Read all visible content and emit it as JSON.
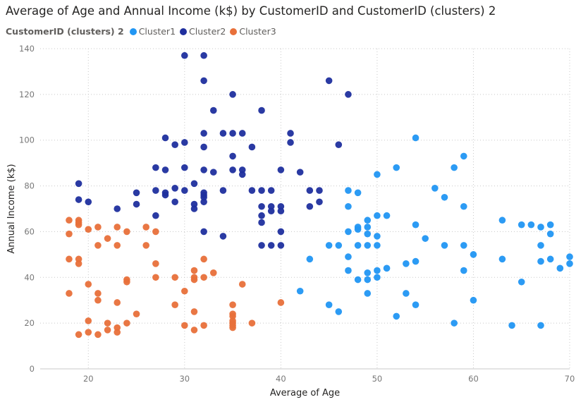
{
  "chart_data": {
    "type": "scatter",
    "title": "Average of Age and Annual Income (k$) by CustomerID and CustomerID (clusters) 2",
    "legend_title": "CustomerID (clusters) 2",
    "legend_position": "top-left",
    "xlabel": "Average of Age",
    "ylabel": "Annual Income (k$)",
    "xlim": [
      15,
      70
    ],
    "ylim": [
      0,
      140
    ],
    "xticks": [
      20,
      30,
      40,
      50,
      60,
      70
    ],
    "yticks": [
      0,
      20,
      40,
      60,
      80,
      100,
      120,
      140
    ],
    "grid": true,
    "series": [
      {
        "name": "Cluster1",
        "color": "#2196F3",
        "points": [
          [
            42,
            34
          ],
          [
            43,
            48
          ],
          [
            45,
            28
          ],
          [
            45,
            54
          ],
          [
            46,
            25
          ],
          [
            46,
            54
          ],
          [
            47,
            78
          ],
          [
            47,
            71
          ],
          [
            47,
            60
          ],
          [
            47,
            49
          ],
          [
            47,
            43
          ],
          [
            48,
            77
          ],
          [
            48,
            62
          ],
          [
            48,
            61
          ],
          [
            48,
            54
          ],
          [
            48,
            39
          ],
          [
            49,
            65
          ],
          [
            49,
            62
          ],
          [
            49,
            59
          ],
          [
            49,
            54
          ],
          [
            49,
            42
          ],
          [
            49,
            39
          ],
          [
            49,
            33
          ],
          [
            50,
            85
          ],
          [
            50,
            67
          ],
          [
            50,
            58
          ],
          [
            50,
            54
          ],
          [
            50,
            43
          ],
          [
            50,
            40
          ],
          [
            51,
            67
          ],
          [
            51,
            44
          ],
          [
            52,
            88
          ],
          [
            52,
            23
          ],
          [
            53,
            46
          ],
          [
            53,
            33
          ],
          [
            54,
            101
          ],
          [
            54,
            63
          ],
          [
            54,
            47
          ],
          [
            54,
            28
          ],
          [
            55,
            57
          ],
          [
            56,
            79
          ],
          [
            57,
            75
          ],
          [
            57,
            54
          ],
          [
            58,
            88
          ],
          [
            58,
            20
          ],
          [
            59,
            93
          ],
          [
            59,
            71
          ],
          [
            59,
            54
          ],
          [
            59,
            43
          ],
          [
            60,
            50
          ],
          [
            60,
            30
          ],
          [
            63,
            65
          ],
          [
            63,
            48
          ],
          [
            64,
            19
          ],
          [
            65,
            63
          ],
          [
            65,
            38
          ],
          [
            66,
            63
          ],
          [
            67,
            62
          ],
          [
            67,
            54
          ],
          [
            67,
            47
          ],
          [
            67,
            19
          ],
          [
            68,
            63
          ],
          [
            68,
            59
          ],
          [
            68,
            48
          ],
          [
            69,
            44
          ],
          [
            70,
            49
          ],
          [
            70,
            46
          ]
        ]
      },
      {
        "name": "Cluster2",
        "color": "#1F2F9E",
        "points": [
          [
            19,
            81
          ],
          [
            19,
            74
          ],
          [
            20,
            73
          ],
          [
            23,
            70
          ],
          [
            25,
            77
          ],
          [
            25,
            72
          ],
          [
            27,
            88
          ],
          [
            27,
            78
          ],
          [
            27,
            67
          ],
          [
            28,
            101
          ],
          [
            28,
            87
          ],
          [
            28,
            77
          ],
          [
            28,
            76
          ],
          [
            29,
            98
          ],
          [
            29,
            79
          ],
          [
            29,
            73
          ],
          [
            30,
            137
          ],
          [
            30,
            99
          ],
          [
            30,
            88
          ],
          [
            30,
            78
          ],
          [
            31,
            81
          ],
          [
            31,
            72
          ],
          [
            31,
            70
          ],
          [
            32,
            137
          ],
          [
            32,
            126
          ],
          [
            32,
            103
          ],
          [
            32,
            97
          ],
          [
            32,
            87
          ],
          [
            32,
            77
          ],
          [
            32,
            76
          ],
          [
            32,
            75
          ],
          [
            32,
            73
          ],
          [
            32,
            60
          ],
          [
            33,
            113
          ],
          [
            33,
            86
          ],
          [
            34,
            103
          ],
          [
            34,
            78
          ],
          [
            34,
            58
          ],
          [
            35,
            120
          ],
          [
            35,
            103
          ],
          [
            35,
            93
          ],
          [
            35,
            87
          ],
          [
            36,
            103
          ],
          [
            36,
            87
          ],
          [
            36,
            85
          ],
          [
            37,
            97
          ],
          [
            37,
            78
          ],
          [
            38,
            113
          ],
          [
            38,
            78
          ],
          [
            38,
            71
          ],
          [
            38,
            67
          ],
          [
            38,
            64
          ],
          [
            38,
            54
          ],
          [
            39,
            78
          ],
          [
            39,
            71
          ],
          [
            39,
            69
          ],
          [
            39,
            54
          ],
          [
            40,
            87
          ],
          [
            40,
            71
          ],
          [
            40,
            69
          ],
          [
            40,
            60
          ],
          [
            40,
            54
          ],
          [
            41,
            103
          ],
          [
            41,
            99
          ],
          [
            42,
            86
          ],
          [
            43,
            78
          ],
          [
            43,
            71
          ],
          [
            44,
            78
          ],
          [
            44,
            73
          ],
          [
            45,
            126
          ],
          [
            46,
            98
          ],
          [
            47,
            120
          ]
        ]
      },
      {
        "name": "Cluster3",
        "color": "#E8703A",
        "points": [
          [
            18,
            65
          ],
          [
            18,
            59
          ],
          [
            18,
            48
          ],
          [
            18,
            33
          ],
          [
            19,
            65
          ],
          [
            19,
            64
          ],
          [
            19,
            63
          ],
          [
            19,
            48
          ],
          [
            19,
            46
          ],
          [
            19,
            15
          ],
          [
            20,
            61
          ],
          [
            20,
            37
          ],
          [
            20,
            21
          ],
          [
            20,
            16
          ],
          [
            21,
            62
          ],
          [
            21,
            54
          ],
          [
            21,
            33
          ],
          [
            21,
            30
          ],
          [
            21,
            15
          ],
          [
            22,
            57
          ],
          [
            22,
            20
          ],
          [
            22,
            17
          ],
          [
            23,
            62
          ],
          [
            23,
            54
          ],
          [
            23,
            29
          ],
          [
            23,
            18
          ],
          [
            23,
            16
          ],
          [
            24,
            60
          ],
          [
            24,
            39
          ],
          [
            24,
            38
          ],
          [
            24,
            20
          ],
          [
            25,
            24
          ],
          [
            26,
            62
          ],
          [
            26,
            54
          ],
          [
            27,
            60
          ],
          [
            27,
            46
          ],
          [
            27,
            40
          ],
          [
            29,
            40
          ],
          [
            29,
            28
          ],
          [
            30,
            34
          ],
          [
            30,
            19
          ],
          [
            31,
            43
          ],
          [
            31,
            40
          ],
          [
            31,
            39
          ],
          [
            31,
            25
          ],
          [
            31,
            17
          ],
          [
            32,
            48
          ],
          [
            32,
            40
          ],
          [
            32,
            19
          ],
          [
            33,
            42
          ],
          [
            35,
            28
          ],
          [
            35,
            24
          ],
          [
            35,
            23
          ],
          [
            35,
            21
          ],
          [
            35,
            20
          ],
          [
            35,
            19
          ],
          [
            35,
            18
          ],
          [
            36,
            37
          ],
          [
            37,
            20
          ],
          [
            40,
            29
          ]
        ]
      }
    ]
  }
}
